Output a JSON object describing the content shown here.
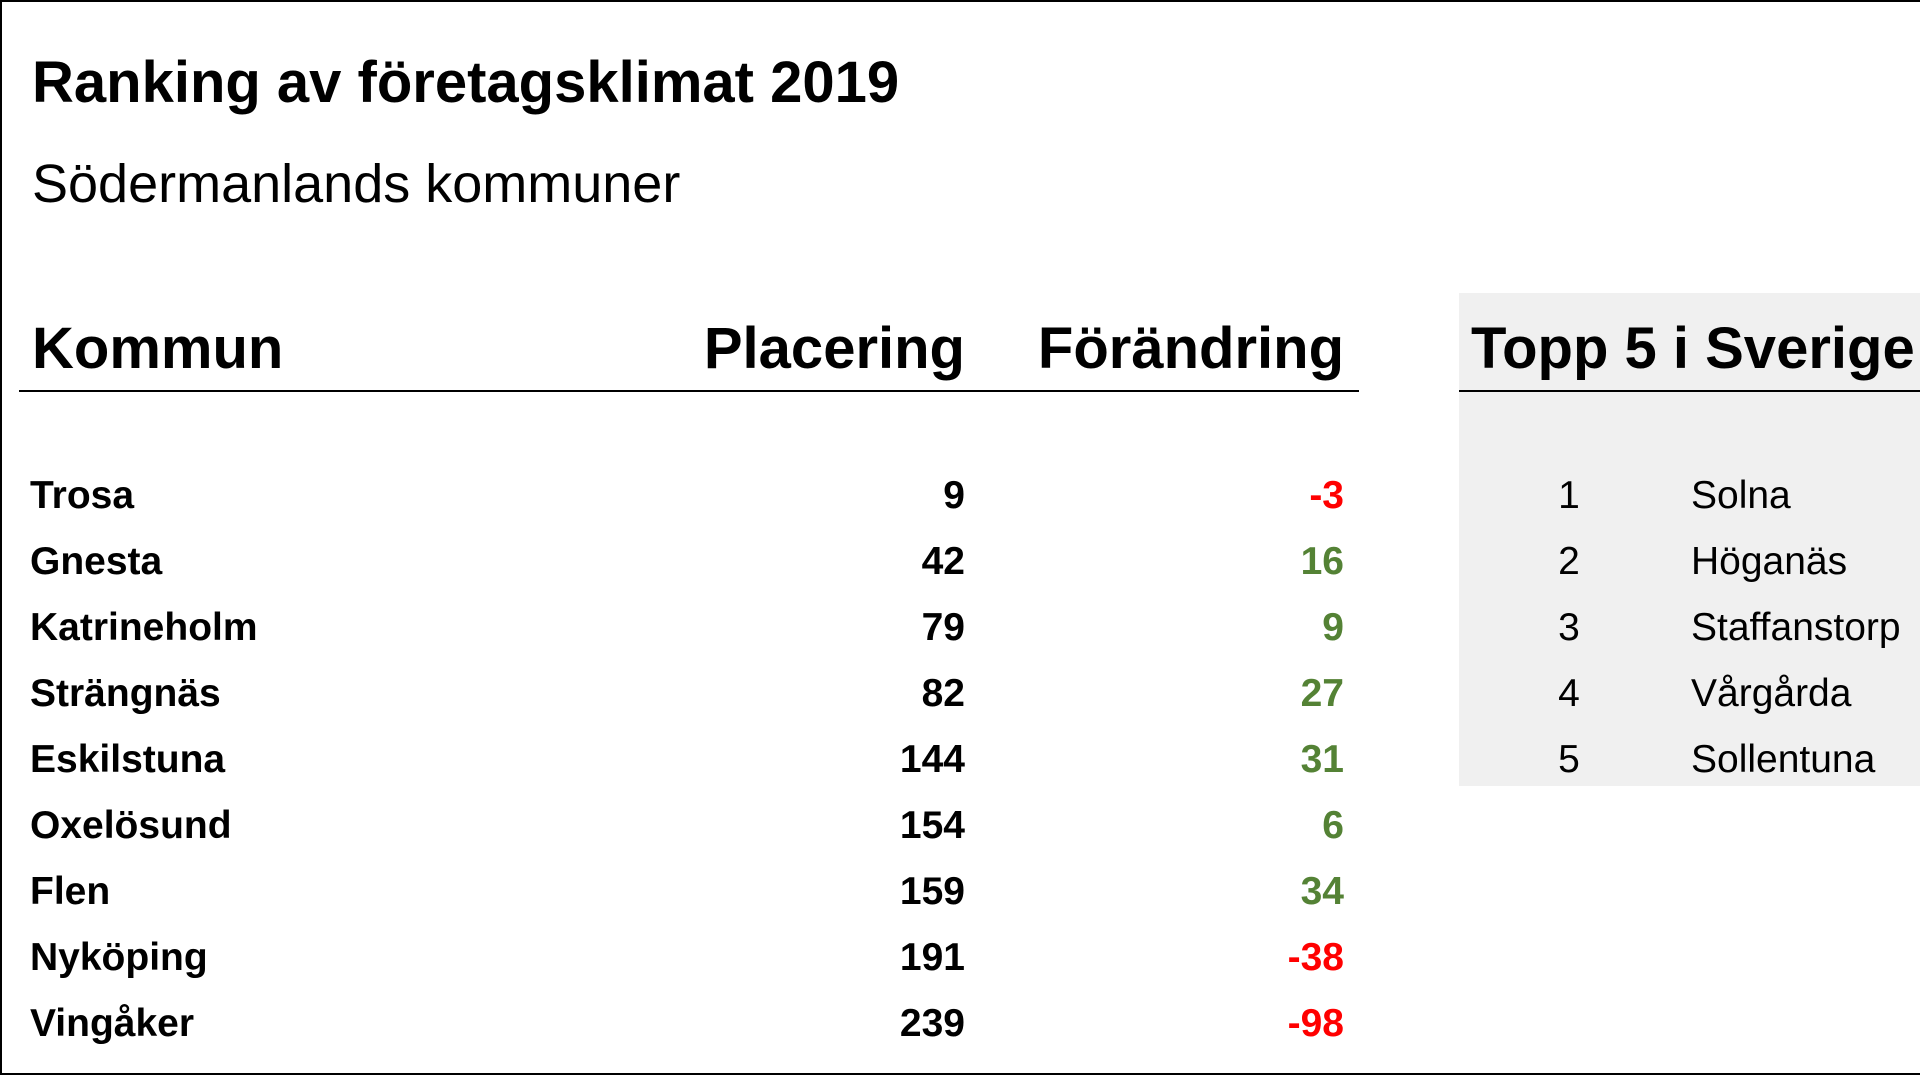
{
  "header": {
    "title": "Ranking av företagsklimat 2019",
    "subtitle": "Södermanlands kommuner"
  },
  "table": {
    "columns": [
      "Kommun",
      "Placering",
      "Förändring"
    ],
    "rows": [
      [
        "Trosa",
        9,
        -3
      ],
      [
        "Gnesta",
        42,
        16
      ],
      [
        "Katrineholm",
        79,
        9
      ],
      [
        "Strängnäs",
        82,
        27
      ],
      [
        "Eskilstuna",
        144,
        31
      ],
      [
        "Oxelösund",
        154,
        6
      ],
      [
        "Flen",
        159,
        34
      ],
      [
        "Nyköping",
        191,
        -38
      ],
      [
        "Vingåker",
        239,
        -98
      ]
    ]
  },
  "top5": {
    "title": "Topp 5 i Sverige",
    "rows": [
      [
        1,
        "Solna"
      ],
      [
        2,
        "Höganäs"
      ],
      [
        3,
        "Staffanstorp"
      ],
      [
        4,
        "Vårgårda"
      ],
      [
        5,
        "Sollentuna"
      ]
    ]
  }
}
